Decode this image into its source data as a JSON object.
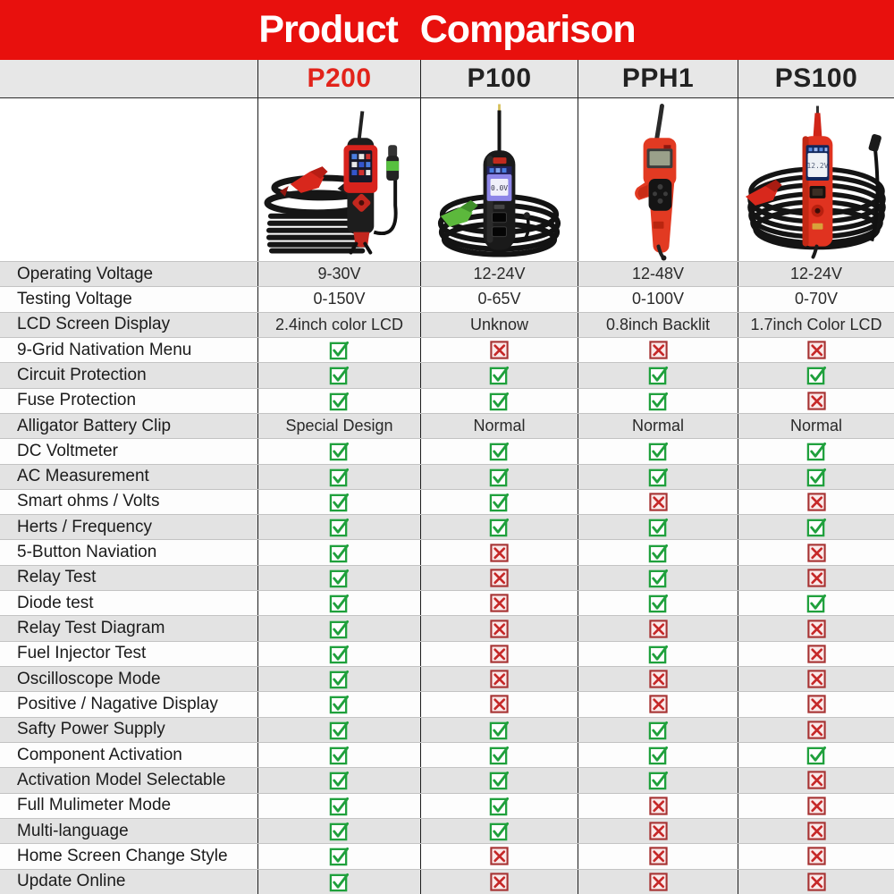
{
  "banner": {
    "title": "Product Comparison"
  },
  "colors": {
    "banner_red": "#e8100d",
    "highlight_red": "#e2231a",
    "check_green": "#1fa03c",
    "cross_red": "#c62828",
    "cross_fill": "#fbeaea",
    "header_bg": "#e7e7e7",
    "row_shade": "#e3e3e3",
    "row_plain": "#fdfdfd"
  },
  "products": [
    {
      "label": "P200",
      "highlight": true
    },
    {
      "label": "P100",
      "highlight": false
    },
    {
      "label": "PPH1",
      "highlight": false
    },
    {
      "label": "PS100",
      "highlight": false
    }
  ],
  "product_screens": {
    "p100_screen_value": "0.0V",
    "ps100_screen_value": "12.2V"
  },
  "icons": {
    "check": "check-icon",
    "cross": "cross-icon"
  },
  "rows": [
    {
      "label": "Operating Voltage",
      "type": "text",
      "values": [
        "9-30V",
        "12-24V",
        "12-48V",
        "12-24V"
      ]
    },
    {
      "label": "Testing Voltage",
      "type": "text",
      "values": [
        "0-150V",
        "0-65V",
        "0-100V",
        "0-70V"
      ]
    },
    {
      "label": "LCD Screen Display",
      "type": "text",
      "values": [
        "2.4inch color LCD",
        "Unknow",
        "0.8inch Backlit",
        "1.7inch Color LCD"
      ]
    },
    {
      "label": "9-Grid Nativation Menu",
      "type": "bool",
      "values": [
        true,
        false,
        false,
        false
      ]
    },
    {
      "label": "Circuit Protection",
      "type": "bool",
      "values": [
        true,
        true,
        true,
        true
      ]
    },
    {
      "label": "Fuse Protection",
      "type": "bool",
      "values": [
        true,
        true,
        true,
        false
      ]
    },
    {
      "label": "Alligator Battery Clip",
      "type": "text",
      "values": [
        "Special Design",
        "Normal",
        "Normal",
        "Normal"
      ]
    },
    {
      "label": "DC Voltmeter",
      "type": "bool",
      "values": [
        true,
        true,
        true,
        true
      ]
    },
    {
      "label": "AC Measurement",
      "type": "bool",
      "values": [
        true,
        true,
        true,
        true
      ]
    },
    {
      "label": "Smart ohms / Volts",
      "type": "bool",
      "values": [
        true,
        true,
        false,
        false
      ]
    },
    {
      "label": "Herts / Frequency",
      "type": "bool",
      "values": [
        true,
        true,
        true,
        true
      ]
    },
    {
      "label": "5-Button Naviation",
      "type": "bool",
      "values": [
        true,
        false,
        true,
        false
      ]
    },
    {
      "label": "Relay Test",
      "type": "bool",
      "values": [
        true,
        false,
        true,
        false
      ]
    },
    {
      "label": "Diode test",
      "type": "bool",
      "values": [
        true,
        false,
        true,
        true
      ]
    },
    {
      "label": "Relay Test Diagram",
      "type": "bool",
      "values": [
        true,
        false,
        false,
        false
      ]
    },
    {
      "label": "Fuel Injector Test",
      "type": "bool",
      "values": [
        true,
        false,
        true,
        false
      ]
    },
    {
      "label": "Oscilloscope Mode",
      "type": "bool",
      "values": [
        true,
        false,
        false,
        false
      ]
    },
    {
      "label": "Positive / Nagative Display",
      "type": "bool",
      "values": [
        true,
        false,
        false,
        false
      ]
    },
    {
      "label": "Safty Power Supply",
      "type": "bool",
      "values": [
        true,
        true,
        true,
        false
      ]
    },
    {
      "label": "Component Activation",
      "type": "bool",
      "values": [
        true,
        true,
        true,
        true
      ]
    },
    {
      "label": "Activation Model Selectable",
      "type": "bool",
      "values": [
        true,
        true,
        true,
        false
      ]
    },
    {
      "label": "Full Mulimeter Mode",
      "type": "bool",
      "values": [
        true,
        true,
        false,
        false
      ]
    },
    {
      "label": "Multi-language",
      "type": "bool",
      "values": [
        true,
        true,
        false,
        false
      ]
    },
    {
      "label": "Home Screen Change Style",
      "type": "bool",
      "values": [
        true,
        false,
        false,
        false
      ]
    },
    {
      "label": "Update Online",
      "type": "bool",
      "values": [
        true,
        false,
        false,
        false
      ]
    }
  ]
}
